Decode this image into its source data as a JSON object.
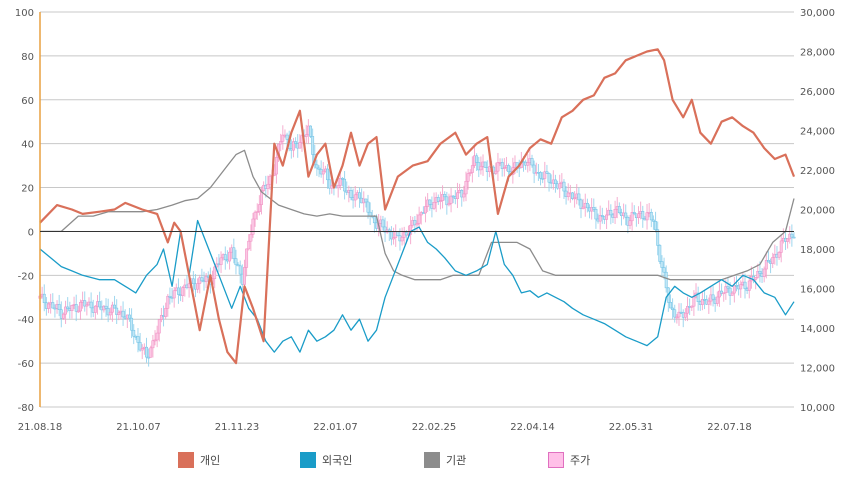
{
  "chart_data": {
    "type": "line",
    "x_ticks": [
      "21.08.18",
      "21.10.07",
      "21.11.23",
      "22.01.07",
      "22.02.25",
      "22.04.14",
      "22.05.31",
      "22.07.18"
    ],
    "left_axis": {
      "ylim": [
        -80,
        100
      ],
      "ticks": [
        100,
        80,
        60,
        40,
        20,
        0,
        -20,
        -40,
        -60,
        -80
      ]
    },
    "right_axis": {
      "ylim": [
        10000,
        30000
      ],
      "ticks": [
        "30,000",
        "28,000",
        "26,000",
        "24,000",
        "22,000",
        "20,000",
        "18,000",
        "16,000",
        "14,000",
        "12,000",
        "10,000"
      ]
    },
    "grid": true,
    "legend_position": "bottom",
    "colors": {
      "gain": "#e04050",
      "loss": "#4ab0e0",
      "axis_left": "#e8a040"
    },
    "series": [
      {
        "name": "개인",
        "color": "#d9705a",
        "axis": "left",
        "points": [
          [
            0,
            4
          ],
          [
            8,
            12
          ],
          [
            15,
            10
          ],
          [
            20,
            8
          ],
          [
            28,
            9
          ],
          [
            35,
            10
          ],
          [
            40,
            13
          ],
          [
            48,
            10
          ],
          [
            55,
            8
          ],
          [
            60,
            -5
          ],
          [
            63,
            4
          ],
          [
            66,
            0
          ],
          [
            72,
            -30
          ],
          [
            75,
            -45
          ],
          [
            80,
            -20
          ],
          [
            84,
            -40
          ],
          [
            88,
            -55
          ],
          [
            92,
            -60
          ],
          [
            96,
            -25
          ],
          [
            100,
            -35
          ],
          [
            105,
            -50
          ],
          [
            110,
            40
          ],
          [
            114,
            30
          ],
          [
            118,
            45
          ],
          [
            122,
            55
          ],
          [
            126,
            25
          ],
          [
            130,
            35
          ],
          [
            134,
            40
          ],
          [
            138,
            20
          ],
          [
            142,
            30
          ],
          [
            146,
            45
          ],
          [
            150,
            30
          ],
          [
            154,
            40
          ],
          [
            158,
            43
          ],
          [
            162,
            10
          ],
          [
            168,
            25
          ],
          [
            175,
            30
          ],
          [
            182,
            32
          ],
          [
            188,
            40
          ],
          [
            195,
            45
          ],
          [
            200,
            35
          ],
          [
            205,
            40
          ],
          [
            210,
            43
          ],
          [
            215,
            8
          ],
          [
            220,
            25
          ],
          [
            225,
            30
          ],
          [
            230,
            38
          ],
          [
            235,
            42
          ],
          [
            240,
            40
          ],
          [
            245,
            52
          ],
          [
            250,
            55
          ],
          [
            255,
            60
          ],
          [
            260,
            62
          ],
          [
            265,
            70
          ],
          [
            270,
            72
          ],
          [
            275,
            78
          ],
          [
            280,
            80
          ],
          [
            285,
            82
          ],
          [
            290,
            83
          ],
          [
            293,
            78
          ],
          [
            297,
            60
          ],
          [
            302,
            52
          ],
          [
            306,
            60
          ],
          [
            310,
            45
          ],
          [
            315,
            40
          ],
          [
            320,
            50
          ],
          [
            325,
            52
          ],
          [
            330,
            48
          ],
          [
            335,
            45
          ],
          [
            340,
            38
          ],
          [
            345,
            33
          ],
          [
            350,
            35
          ],
          [
            354,
            25
          ]
        ]
      },
      {
        "name": "외국인",
        "color": "#1a9cc8",
        "axis": "left",
        "points": [
          [
            0,
            -8
          ],
          [
            5,
            -12
          ],
          [
            10,
            -16
          ],
          [
            15,
            -18
          ],
          [
            20,
            -20
          ],
          [
            28,
            -22
          ],
          [
            35,
            -22
          ],
          [
            40,
            -25
          ],
          [
            45,
            -28
          ],
          [
            50,
            -20
          ],
          [
            55,
            -15
          ],
          [
            58,
            -8
          ],
          [
            62,
            -25
          ],
          [
            66,
            0
          ],
          [
            70,
            -20
          ],
          [
            74,
            5
          ],
          [
            78,
            -5
          ],
          [
            82,
            -15
          ],
          [
            86,
            -25
          ],
          [
            90,
            -35
          ],
          [
            94,
            -25
          ],
          [
            98,
            -35
          ],
          [
            102,
            -40
          ],
          [
            106,
            -50
          ],
          [
            110,
            -55
          ],
          [
            114,
            -50
          ],
          [
            118,
            -48
          ],
          [
            122,
            -55
          ],
          [
            126,
            -45
          ],
          [
            130,
            -50
          ],
          [
            134,
            -48
          ],
          [
            138,
            -45
          ],
          [
            142,
            -38
          ],
          [
            146,
            -45
          ],
          [
            150,
            -40
          ],
          [
            154,
            -50
          ],
          [
            158,
            -45
          ],
          [
            162,
            -30
          ],
          [
            166,
            -20
          ],
          [
            170,
            -10
          ],
          [
            174,
            0
          ],
          [
            178,
            2
          ],
          [
            182,
            -5
          ],
          [
            186,
            -8
          ],
          [
            190,
            -12
          ],
          [
            195,
            -18
          ],
          [
            200,
            -20
          ],
          [
            205,
            -18
          ],
          [
            210,
            -15
          ],
          [
            214,
            0
          ],
          [
            218,
            -15
          ],
          [
            222,
            -20
          ],
          [
            226,
            -28
          ],
          [
            230,
            -27
          ],
          [
            234,
            -30
          ],
          [
            238,
            -28
          ],
          [
            242,
            -30
          ],
          [
            246,
            -32
          ],
          [
            250,
            -35
          ],
          [
            255,
            -38
          ],
          [
            260,
            -40
          ],
          [
            265,
            -42
          ],
          [
            270,
            -45
          ],
          [
            275,
            -48
          ],
          [
            280,
            -50
          ],
          [
            285,
            -52
          ],
          [
            290,
            -48
          ],
          [
            294,
            -30
          ],
          [
            298,
            -25
          ],
          [
            302,
            -28
          ],
          [
            306,
            -30
          ],
          [
            310,
            -28
          ],
          [
            315,
            -25
          ],
          [
            320,
            -22
          ],
          [
            325,
            -25
          ],
          [
            330,
            -20
          ],
          [
            335,
            -22
          ],
          [
            340,
            -28
          ],
          [
            345,
            -30
          ],
          [
            350,
            -38
          ],
          [
            354,
            -32
          ]
        ]
      },
      {
        "name": "기관",
        "color": "#8c8c8c",
        "axis": "left",
        "points": [
          [
            0,
            0
          ],
          [
            10,
            0
          ],
          [
            18,
            7
          ],
          [
            25,
            7
          ],
          [
            32,
            9
          ],
          [
            40,
            9
          ],
          [
            48,
            9
          ],
          [
            55,
            10
          ],
          [
            62,
            12
          ],
          [
            68,
            14
          ],
          [
            74,
            15
          ],
          [
            80,
            20
          ],
          [
            84,
            25
          ],
          [
            88,
            30
          ],
          [
            92,
            35
          ],
          [
            96,
            37
          ],
          [
            100,
            25
          ],
          [
            104,
            18
          ],
          [
            108,
            15
          ],
          [
            112,
            12
          ],
          [
            118,
            10
          ],
          [
            124,
            8
          ],
          [
            130,
            7
          ],
          [
            136,
            8
          ],
          [
            142,
            7
          ],
          [
            148,
            7
          ],
          [
            154,
            7
          ],
          [
            158,
            7
          ],
          [
            162,
            -10
          ],
          [
            166,
            -18
          ],
          [
            170,
            -20
          ],
          [
            176,
            -22
          ],
          [
            182,
            -22
          ],
          [
            188,
            -22
          ],
          [
            194,
            -20
          ],
          [
            200,
            -20
          ],
          [
            206,
            -20
          ],
          [
            212,
            -5
          ],
          [
            218,
            -5
          ],
          [
            224,
            -5
          ],
          [
            230,
            -8
          ],
          [
            236,
            -18
          ],
          [
            242,
            -20
          ],
          [
            248,
            -20
          ],
          [
            254,
            -20
          ],
          [
            260,
            -20
          ],
          [
            266,
            -20
          ],
          [
            272,
            -20
          ],
          [
            278,
            -20
          ],
          [
            284,
            -20
          ],
          [
            290,
            -20
          ],
          [
            296,
            -22
          ],
          [
            302,
            -22
          ],
          [
            308,
            -22
          ],
          [
            314,
            -22
          ],
          [
            320,
            -22
          ],
          [
            326,
            -20
          ],
          [
            332,
            -18
          ],
          [
            338,
            -15
          ],
          [
            344,
            -5
          ],
          [
            350,
            0
          ],
          [
            354,
            15
          ]
        ]
      },
      {
        "name": "주가",
        "color": "#ff9ed8",
        "axis": "right",
        "points": [
          [
            0,
            15500
          ],
          [
            10,
            14800
          ],
          [
            20,
            15200
          ],
          [
            30,
            15000
          ],
          [
            40,
            14700
          ],
          [
            45,
            13500
          ],
          [
            50,
            12500
          ],
          [
            55,
            13800
          ],
          [
            60,
            15500
          ],
          [
            70,
            16200
          ],
          [
            80,
            16500
          ],
          [
            85,
            17500
          ],
          [
            90,
            17800
          ],
          [
            95,
            16500
          ],
          [
            100,
            19500
          ],
          [
            105,
            21000
          ],
          [
            110,
            22000
          ],
          [
            114,
            24000
          ],
          [
            118,
            23000
          ],
          [
            122,
            23500
          ],
          [
            126,
            24000
          ],
          [
            130,
            22000
          ],
          [
            134,
            21800
          ],
          [
            138,
            21000
          ],
          [
            142,
            21500
          ],
          [
            146,
            20500
          ],
          [
            150,
            20800
          ],
          [
            156,
            19500
          ],
          [
            162,
            19000
          ],
          [
            168,
            18500
          ],
          [
            174,
            19000
          ],
          [
            180,
            20000
          ],
          [
            186,
            20500
          ],
          [
            192,
            20500
          ],
          [
            198,
            20800
          ],
          [
            204,
            22500
          ],
          [
            210,
            22000
          ],
          [
            216,
            22200
          ],
          [
            222,
            22000
          ],
          [
            228,
            22500
          ],
          [
            234,
            21800
          ],
          [
            240,
            21500
          ],
          [
            246,
            21000
          ],
          [
            252,
            20500
          ],
          [
            258,
            20000
          ],
          [
            264,
            19500
          ],
          [
            270,
            20000
          ],
          [
            276,
            19500
          ],
          [
            282,
            19800
          ],
          [
            288,
            19500
          ],
          [
            292,
            17000
          ],
          [
            296,
            15000
          ],
          [
            300,
            14500
          ],
          [
            304,
            15000
          ],
          [
            308,
            15500
          ],
          [
            314,
            15300
          ],
          [
            320,
            15800
          ],
          [
            326,
            16000
          ],
          [
            332,
            16200
          ],
          [
            338,
            16800
          ],
          [
            344,
            17500
          ],
          [
            350,
            18500
          ],
          [
            354,
            18800
          ]
        ]
      }
    ]
  }
}
